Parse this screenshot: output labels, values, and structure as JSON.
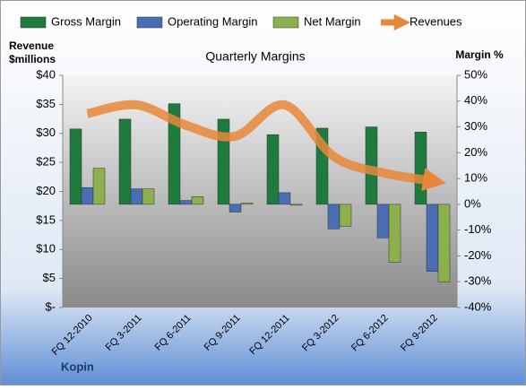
{
  "chart_data": {
    "type": "combo",
    "title": "Quarterly Margins",
    "y_label": "Revenue $millions",
    "y2_label": "Margin %",
    "footer": "Kopin",
    "categories": [
      "FQ 12-2010",
      "FQ 3-2011",
      "FQ 6-2011",
      "FQ 9-2011",
      "FQ 12-2011",
      "FQ 3-2012",
      "FQ 6-2012",
      "FQ 9-2012"
    ],
    "series": [
      {
        "name": "Gross Margin",
        "type": "bar",
        "axis": "y2",
        "color": "#1f7a3d",
        "values": [
          29.2,
          33,
          39,
          33,
          27,
          29.5,
          30,
          28
        ]
      },
      {
        "name": "Operating Margin",
        "type": "bar",
        "axis": "y2",
        "color": "#4a6db3",
        "values": [
          6.5,
          6,
          1.5,
          -3,
          4.5,
          -9.5,
          -13,
          -26
        ]
      },
      {
        "name": "Net Margin",
        "type": "bar",
        "axis": "y2",
        "color": "#8db04e",
        "values": [
          14,
          6,
          3,
          0.5,
          -0.3,
          -8.5,
          -22.5,
          -30
        ]
      },
      {
        "name": "Revenues",
        "type": "line",
        "axis": "y",
        "color": "#e8873a",
        "values": [
          33.4,
          34.9,
          31.4,
          29.5,
          34.9,
          26,
          23.2,
          21.8
        ]
      }
    ],
    "ylim": [
      0,
      40
    ],
    "yticks": [
      {
        "value": 0,
        "label": "$-"
      },
      {
        "value": 5,
        "label": "$5"
      },
      {
        "value": 10,
        "label": "$10"
      },
      {
        "value": 15,
        "label": "$15"
      },
      {
        "value": 20,
        "label": "$20"
      },
      {
        "value": 25,
        "label": "$25"
      },
      {
        "value": 30,
        "label": "$30"
      },
      {
        "value": 35,
        "label": "$35"
      },
      {
        "value": 40,
        "label": "$40"
      }
    ],
    "y2lim": [
      -40,
      50
    ],
    "y2ticks": [
      {
        "value": -40,
        "label": "-40%"
      },
      {
        "value": -30,
        "label": "-30%"
      },
      {
        "value": -20,
        "label": "-20%"
      },
      {
        "value": -10,
        "label": "-10%"
      },
      {
        "value": 0,
        "label": "0%"
      },
      {
        "value": 10,
        "label": "10%"
      },
      {
        "value": 20,
        "label": "20%"
      },
      {
        "value": 30,
        "label": "30%"
      },
      {
        "value": 40,
        "label": "40%"
      },
      {
        "value": 50,
        "label": "50%"
      }
    ]
  }
}
